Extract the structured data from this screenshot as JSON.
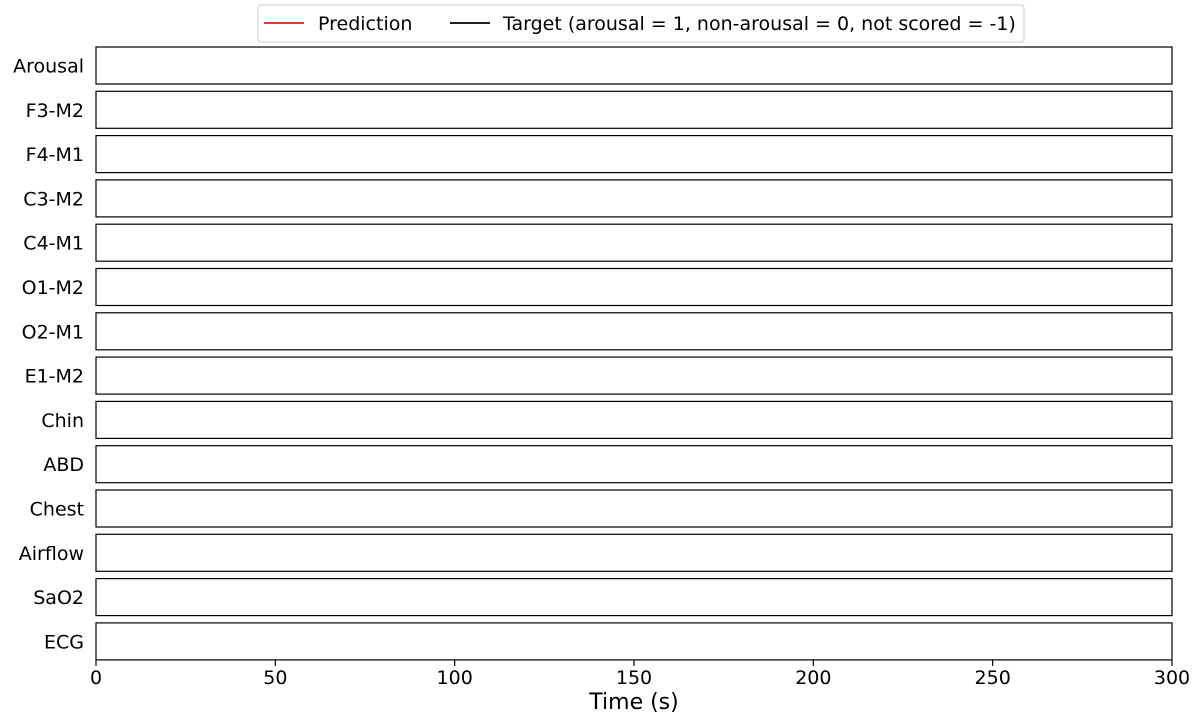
{
  "chart_data": {
    "type": "line",
    "legend": {
      "placement": "top-center",
      "entries": [
        {
          "label": "Prediction",
          "color": "#e41a1c"
        },
        {
          "label": "Target (arousal = 1, non-arousal = 0, not scored = -1)",
          "color": "#000000"
        }
      ]
    },
    "panels": [
      "Arousal",
      "F3-M2",
      "F4-M1",
      "C3-M2",
      "C4-M1",
      "O1-M2",
      "O2-M1",
      "E1-M2",
      "Chin",
      "ABD",
      "Chest",
      "Airflow",
      "SaO2",
      "ECG"
    ],
    "series": [],
    "xlabel": "Time (s)",
    "xlim": [
      0,
      300
    ],
    "xticks": [
      0,
      50,
      100,
      150,
      200,
      250,
      300
    ],
    "grid": false
  }
}
